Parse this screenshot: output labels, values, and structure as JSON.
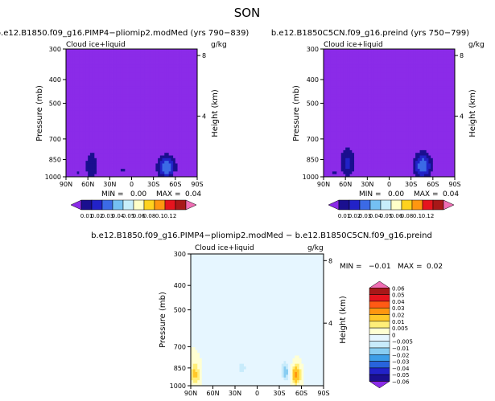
{
  "page_title": "SON",
  "chart_data": [
    {
      "type": "heatmap",
      "title": "b.e12.B1850.f09_g16.PIMP4−pliomip2.modMed (yrs 790−839)",
      "field_label": "Cloud ice+liquid",
      "units": "g/kg",
      "ylabel": "Pressure (mb)",
      "y2label": "Height (km)",
      "x_ticks": [
        "90N",
        "60N",
        "30N",
        "0",
        "30S",
        "60S",
        "90S"
      ],
      "y_ticks": [
        "300",
        "400",
        "500",
        "700",
        "850",
        "1000"
      ],
      "y2_ticks": [
        "8",
        "4"
      ],
      "min_text": "MIN =",
      "min_value": "0.00",
      "max_text": "MAX =",
      "max_value": "0.04",
      "features": [
        {
          "lat": 55,
          "p": 900,
          "dlat": 9,
          "dp": 120,
          "amp": 0.02
        },
        {
          "lat": -48,
          "p": 915,
          "dlat": 12,
          "dp": 95,
          "amp": 0.04
        },
        {
          "lat": 12,
          "p": 935,
          "dlat": 8,
          "dp": 40,
          "amp": 0.012
        },
        {
          "lat": 74,
          "p": 965,
          "dlat": 6,
          "dp": 35,
          "amp": 0.011
        }
      ]
    },
    {
      "type": "heatmap",
      "title": "b.e12.B1850C5CN.f09_g16.preind (yrs 750−799)",
      "field_label": "Cloud ice+liquid",
      "units": "g/kg",
      "ylabel": "Pressure (mb)",
      "y2label": "Height (km)",
      "x_ticks": [
        "90N",
        "60N",
        "30N",
        "0",
        "30S",
        "60S",
        "90S"
      ],
      "y_ticks": [
        "300",
        "400",
        "500",
        "700",
        "850",
        "1000"
      ],
      "y2_ticks": [
        "8",
        "4"
      ],
      "min_text": "MIN =",
      "min_value": "0.00",
      "max_text": "MAX =",
      "max_value": "0.04",
      "features": [
        {
          "lat": 57,
          "p": 880,
          "dlat": 11,
          "dp": 130,
          "amp": 0.022
        },
        {
          "lat": -46,
          "p": 905,
          "dlat": 12,
          "dp": 105,
          "amp": 0.04
        },
        {
          "lat": 75,
          "p": 960,
          "dlat": 6,
          "dp": 40,
          "amp": 0.011
        }
      ]
    },
    {
      "type": "heatmap",
      "title": "b.e12.B1850.f09_g16.PIMP4−pliomip2.modMed − b.e12.B1850C5CN.f09_g16.preind",
      "field_label": "Cloud ice+liquid",
      "units": "g/kg",
      "ylabel": "Pressure (mb)",
      "y2label": "Height (km)",
      "x_ticks": [
        "90N",
        "60N",
        "30N",
        "0",
        "30S",
        "60S",
        "90S"
      ],
      "y_ticks": [
        "300",
        "400",
        "500",
        "700",
        "850",
        "1000"
      ],
      "y2_ticks": [
        "8",
        "4"
      ],
      "min_text": "MIN =",
      "min_value": "−0.01",
      "max_text": "MAX =",
      "max_value": "0.02",
      "features": [
        {
          "lat": 84,
          "p": 900,
          "dlat": 6,
          "dp": 90,
          "amp": 0.012
        },
        {
          "lat": -53,
          "p": 905,
          "dlat": 5,
          "dp": 75,
          "amp": 0.022
        },
        {
          "lat": -38,
          "p": 880,
          "dlat": 5,
          "dp": 70,
          "amp": -0.014
        },
        {
          "lat": 45,
          "p": 870,
          "dlat": 22,
          "dp": 250,
          "amp": -0.0035
        },
        {
          "lat": -25,
          "p": 600,
          "dlat": 30,
          "dp": 300,
          "amp": -0.0022
        },
        {
          "lat": 10,
          "p": 390,
          "dlat": 45,
          "dp": 110,
          "amp": -0.0022
        },
        {
          "lat": 52,
          "p": 520,
          "dlat": 20,
          "dp": 200,
          "amp": -0.002
        },
        {
          "lat": 20,
          "p": 850,
          "dlat": 6,
          "dp": 60,
          "amp": -0.006
        }
      ]
    }
  ],
  "colorbars": {
    "top": {
      "labels": [
        "0.01",
        "0.02",
        "0.03",
        "0.04",
        "0.05",
        "0.06",
        "0.08",
        "0.1",
        "0.12"
      ],
      "colors": [
        "#8b2be8",
        "#1a0f8f",
        "#2222c8",
        "#3b6ae6",
        "#74c0f2",
        "#c7eefb",
        "#ffffc8",
        "#ffd21e",
        "#ff9610",
        "#e6141e",
        "#a81818",
        "#f06eb4"
      ]
    },
    "diff": {
      "labels": [
        "0.06",
        "0.05",
        "0.04",
        "0.03",
        "0.02",
        "0.01",
        "0.005",
        "0",
        "−0.005",
        "−0.01",
        "−0.02",
        "−0.03",
        "−0.04",
        "−0.05",
        "−0.06"
      ],
      "colors": [
        "#f06eb4",
        "#a81818",
        "#e6141e",
        "#ff5a14",
        "#ff9610",
        "#ffc828",
        "#ffee78",
        "#ffffd2",
        "#e6f6ff",
        "#c8ebfb",
        "#88cdf2",
        "#3c9ee8",
        "#2864dc",
        "#2222c8",
        "#1a0f8f",
        "#8b2be8"
      ]
    }
  }
}
